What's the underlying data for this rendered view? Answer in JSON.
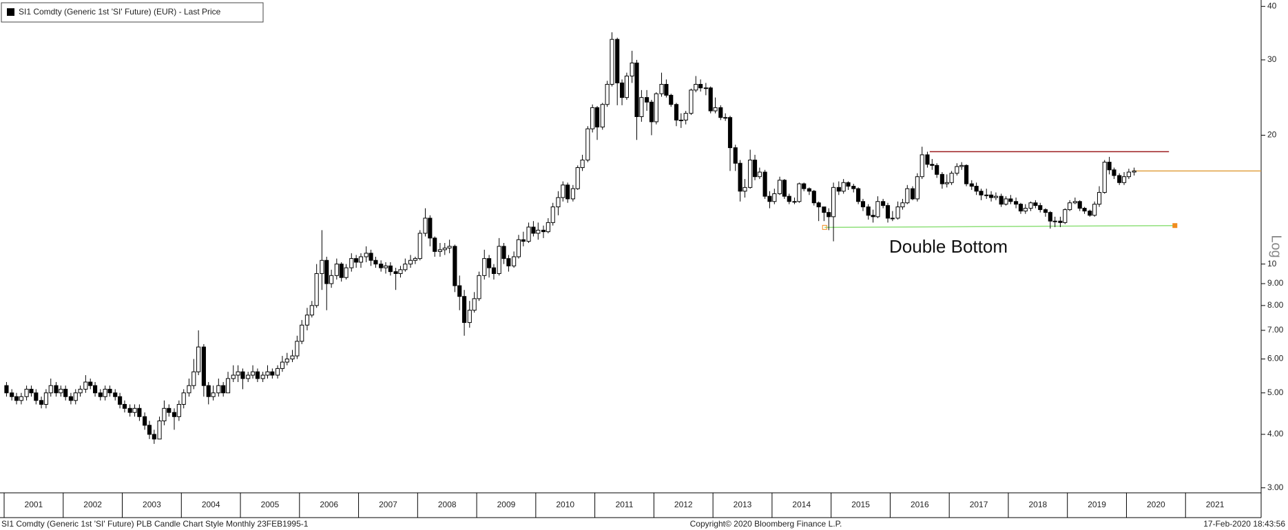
{
  "chart_data": {
    "type": "candlestick",
    "title": "SI1 Comdty (Generic 1st 'SI' Future) (EUR) - Last Price",
    "y_axis_label": "Log",
    "log_scale": true,
    "color_up": "#ffffff",
    "color_down": "#000000",
    "xlim": [
      2000.93,
      2022.28
    ],
    "ylim": [
      2.92,
      41.4
    ],
    "yticks": [
      {
        "value": 3,
        "label": "3.00"
      },
      {
        "value": 4,
        "label": "4.00"
      },
      {
        "value": 5,
        "label": "5.00"
      },
      {
        "value": 6,
        "label": "6.00"
      },
      {
        "value": 7,
        "label": "7.00"
      },
      {
        "value": 8,
        "label": "8.00"
      },
      {
        "value": 9,
        "label": "9.00"
      },
      10,
      20,
      30,
      40
    ],
    "xticks": [
      2001,
      2002,
      2003,
      2004,
      2005,
      2006,
      2007,
      2008,
      2009,
      2010,
      2011,
      2012,
      2013,
      2014,
      2015,
      2016,
      2017,
      2018,
      2019,
      2020,
      2021
    ],
    "x": [
      2001.04,
      2001.13,
      2001.21,
      2001.29,
      2001.38,
      2001.46,
      2001.54,
      2001.63,
      2001.71,
      2001.79,
      2001.88,
      2001.96,
      2002.04,
      2002.13,
      2002.21,
      2002.29,
      2002.38,
      2002.46,
      2002.54,
      2002.63,
      2002.71,
      2002.79,
      2002.88,
      2002.96,
      2003.04,
      2003.13,
      2003.21,
      2003.29,
      2003.38,
      2003.46,
      2003.54,
      2003.63,
      2003.71,
      2003.79,
      2003.88,
      2003.96,
      2004.04,
      2004.13,
      2004.21,
      2004.29,
      2004.38,
      2004.46,
      2004.54,
      2004.63,
      2004.71,
      2004.79,
      2004.88,
      2004.96,
      2005.04,
      2005.13,
      2005.21,
      2005.29,
      2005.38,
      2005.46,
      2005.54,
      2005.63,
      2005.71,
      2005.79,
      2005.88,
      2005.96,
      2006.04,
      2006.13,
      2006.21,
      2006.29,
      2006.38,
      2006.46,
      2006.54,
      2006.63,
      2006.71,
      2006.79,
      2006.88,
      2006.96,
      2007.04,
      2007.13,
      2007.21,
      2007.29,
      2007.38,
      2007.46,
      2007.54,
      2007.63,
      2007.71,
      2007.79,
      2007.88,
      2007.96,
      2008.04,
      2008.13,
      2008.21,
      2008.29,
      2008.38,
      2008.46,
      2008.54,
      2008.63,
      2008.71,
      2008.79,
      2008.88,
      2008.96,
      2009.04,
      2009.13,
      2009.21,
      2009.29,
      2009.38,
      2009.46,
      2009.54,
      2009.63,
      2009.71,
      2009.79,
      2009.88,
      2009.96,
      2010.04,
      2010.13,
      2010.21,
      2010.29,
      2010.38,
      2010.46,
      2010.54,
      2010.63,
      2010.71,
      2010.79,
      2010.88,
      2010.96,
      2011.04,
      2011.13,
      2011.21,
      2011.29,
      2011.38,
      2011.46,
      2011.54,
      2011.63,
      2011.71,
      2011.79,
      2011.88,
      2011.96,
      2012.04,
      2012.13,
      2012.21,
      2012.29,
      2012.38,
      2012.46,
      2012.54,
      2012.63,
      2012.71,
      2012.79,
      2012.88,
      2012.96,
      2013.04,
      2013.13,
      2013.21,
      2013.29,
      2013.38,
      2013.46,
      2013.54,
      2013.63,
      2013.71,
      2013.79,
      2013.88,
      2013.96,
      2014.04,
      2014.13,
      2014.21,
      2014.29,
      2014.38,
      2014.46,
      2014.54,
      2014.63,
      2014.71,
      2014.79,
      2014.88,
      2014.96,
      2015.04,
      2015.13,
      2015.21,
      2015.29,
      2015.38,
      2015.46,
      2015.54,
      2015.63,
      2015.71,
      2015.79,
      2015.88,
      2015.96,
      2016.04,
      2016.13,
      2016.21,
      2016.29,
      2016.38,
      2016.46,
      2016.54,
      2016.63,
      2016.71,
      2016.79,
      2016.88,
      2016.96,
      2017.04,
      2017.13,
      2017.21,
      2017.29,
      2017.38,
      2017.46,
      2017.54,
      2017.63,
      2017.71,
      2017.79,
      2017.88,
      2017.96,
      2018.04,
      2018.13,
      2018.21,
      2018.29,
      2018.38,
      2018.46,
      2018.54,
      2018.63,
      2018.71,
      2018.79,
      2018.88,
      2018.96,
      2019.04,
      2019.13,
      2019.21,
      2019.29,
      2019.38,
      2019.46,
      2019.54,
      2019.63,
      2019.71,
      2019.79,
      2019.88,
      2019.96,
      2020.04,
      2020.13
    ],
    "open": [
      5.2,
      5.0,
      4.9,
      4.8,
      4.9,
      5.1,
      5.0,
      4.8,
      4.7,
      5.0,
      5.2,
      5.0,
      5.1,
      4.9,
      4.8,
      5.0,
      5.1,
      5.3,
      5.2,
      5.0,
      4.9,
      5.1,
      5.0,
      4.9,
      4.7,
      4.6,
      4.5,
      4.6,
      4.4,
      4.2,
      4.0,
      3.9,
      4.3,
      4.6,
      4.5,
      4.4,
      4.7,
      5.0,
      5.2,
      5.6,
      6.4,
      5.2,
      4.9,
      5.0,
      5.2,
      5.0,
      5.4,
      5.5,
      5.6,
      5.4,
      5.5,
      5.6,
      5.4,
      5.5,
      5.6,
      5.5,
      5.7,
      5.9,
      6.0,
      6.1,
      6.6,
      7.2,
      7.6,
      8.0,
      9.5,
      10.2,
      9.0,
      9.4,
      10.0,
      9.3,
      9.8,
      10.3,
      10.1,
      10.4,
      10.6,
      10.2,
      10.0,
      9.8,
      9.9,
      9.6,
      9.5,
      9.7,
      10.0,
      10.2,
      10.3,
      11.8,
      12.8,
      11.5,
      10.7,
      10.8,
      10.9,
      11.0,
      8.9,
      8.4,
      7.3,
      7.8,
      8.3,
      9.4,
      10.3,
      9.8,
      9.5,
      11.0,
      10.3,
      9.9,
      10.4,
      11.4,
      11.3,
      12.2,
      11.8,
      12.0,
      11.9,
      12.5,
      13.6,
      14.3,
      15.3,
      14.2,
      15.0,
      16.8,
      17.5,
      20.7,
      23.2,
      20.9,
      23.6,
      26.3,
      33.5,
      26.5,
      24.5,
      27.5,
      29.5,
      22.1,
      24.5,
      23.9,
      21.5,
      25.0,
      26.3,
      24.8,
      23.6,
      21.7,
      21.7,
      22.5,
      25.5,
      26.3,
      25.8,
      25.8,
      22.8,
      23.2,
      22.0,
      22.0,
      18.7,
      17.2,
      14.8,
      15.1,
      17.5,
      16.0,
      16.4,
      14.4,
      14.0,
      14.6,
      15.7,
      14.4,
      14.0,
      14.0,
      15.4,
      15.0,
      14.8,
      13.9,
      13.6,
      13.2,
      12.9,
      15.1,
      14.8,
      15.5,
      15.2,
      15.0,
      14.0,
      13.6,
      13.0,
      12.9,
      14.0,
      13.7,
      12.8,
      12.8,
      13.6,
      13.9,
      15.0,
      14.2,
      16.0,
      18.0,
      17.1,
      17.0,
      16.2,
      15.4,
      15.5,
      16.3,
      16.9,
      17.0,
      15.4,
      15.2,
      14.8,
      14.5,
      14.5,
      14.3,
      14.4,
      13.8,
      14.2,
      14.0,
      13.8,
      13.3,
      13.5,
      13.9,
      13.7,
      13.4,
      13.2,
      12.6,
      12.6,
      12.5,
      13.4,
      13.9,
      14.0,
      13.5,
      13.3,
      13.0,
      13.8,
      14.7,
      17.3,
      16.6,
      16.1,
      15.5,
      16.0,
      16.4
    ],
    "high": [
      5.3,
      5.1,
      5.0,
      5.0,
      5.2,
      5.2,
      5.1,
      4.9,
      5.1,
      5.4,
      5.3,
      5.2,
      5.2,
      5.0,
      5.1,
      5.2,
      5.5,
      5.4,
      5.3,
      5.1,
      5.2,
      5.2,
      5.1,
      5.0,
      4.8,
      4.7,
      4.7,
      4.7,
      4.5,
      4.3,
      4.1,
      4.4,
      4.8,
      4.7,
      4.6,
      4.8,
      5.1,
      5.4,
      6.0,
      7.0,
      6.5,
      5.3,
      5.2,
      5.4,
      5.3,
      5.6,
      5.8,
      5.8,
      5.7,
      5.6,
      5.8,
      5.7,
      5.6,
      5.8,
      5.7,
      5.8,
      6.1,
      6.2,
      6.3,
      6.8,
      7.4,
      7.9,
      8.2,
      10.0,
      12.0,
      10.4,
      9.7,
      10.3,
      10.1,
      10.0,
      10.6,
      10.5,
      10.6,
      11.0,
      10.8,
      10.4,
      10.2,
      10.1,
      10.1,
      9.8,
      9.9,
      10.3,
      10.5,
      10.4,
      12.0,
      13.5,
      13.0,
      11.6,
      11.2,
      11.2,
      11.4,
      11.1,
      9.4,
      8.7,
      8.2,
      8.6,
      9.6,
      10.8,
      10.5,
      10.0,
      11.5,
      11.2,
      10.5,
      10.7,
      11.7,
      11.9,
      12.5,
      12.6,
      12.5,
      12.3,
      12.8,
      13.9,
      14.8,
      15.6,
      15.5,
      15.3,
      17.0,
      18.0,
      21.0,
      23.6,
      23.4,
      23.8,
      26.8,
      34.8,
      33.8,
      27.0,
      28.0,
      31.5,
      30.0,
      25.5,
      25.5,
      24.2,
      25.2,
      28.0,
      27.0,
      25.0,
      23.8,
      22.5,
      22.8,
      25.7,
      27.5,
      27.0,
      26.5,
      26.0,
      24.5,
      23.5,
      22.5,
      22.2,
      19.0,
      17.5,
      15.8,
      18.5,
      18.0,
      16.8,
      16.6,
      14.8,
      15.0,
      16.0,
      15.8,
      14.6,
      14.3,
      15.5,
      15.5,
      15.1,
      14.9,
      14.0,
      13.6,
      13.5,
      15.5,
      15.6,
      15.8,
      15.6,
      15.4,
      15.1,
      14.2,
      13.8,
      13.4,
      14.4,
      14.2,
      13.9,
      13.3,
      14.0,
      14.2,
      15.3,
      15.2,
      16.3,
      18.8,
      18.3,
      17.6,
      17.2,
      16.4,
      16.2,
      16.5,
      17.2,
      17.3,
      17.1,
      15.7,
      15.5,
      15.0,
      15.0,
      14.8,
      14.7,
      14.6,
      14.4,
      14.5,
      14.3,
      13.9,
      13.8,
      14.0,
      14.1,
      13.9,
      13.5,
      13.3,
      12.9,
      12.9,
      13.5,
      14.1,
      14.3,
      14.1,
      13.6,
      13.4,
      14.0,
      15.2,
      17.5,
      17.8,
      16.8,
      16.3,
      16.4,
      16.7,
      16.8
    ],
    "low": [
      4.9,
      4.8,
      4.7,
      4.7,
      4.8,
      4.9,
      4.7,
      4.6,
      4.6,
      4.9,
      4.9,
      4.9,
      4.8,
      4.7,
      4.7,
      4.9,
      5.0,
      5.1,
      4.9,
      4.8,
      4.8,
      4.9,
      4.8,
      4.6,
      4.5,
      4.4,
      4.4,
      4.3,
      4.1,
      3.9,
      3.8,
      3.9,
      4.2,
      4.4,
      4.1,
      4.3,
      4.6,
      4.9,
      5.1,
      5.5,
      4.9,
      4.7,
      4.8,
      4.9,
      4.9,
      5.0,
      5.3,
      5.3,
      5.1,
      5.3,
      5.4,
      5.3,
      5.3,
      5.4,
      5.4,
      5.4,
      5.6,
      5.8,
      5.9,
      6.0,
      6.5,
      7.0,
      7.5,
      7.9,
      8.7,
      7.8,
      8.8,
      9.2,
      9.1,
      9.2,
      9.6,
      9.8,
      9.8,
      10.1,
      9.9,
      9.8,
      9.6,
      9.5,
      9.4,
      8.7,
      9.3,
      9.6,
      9.8,
      10.0,
      10.2,
      11.6,
      11.0,
      10.4,
      10.4,
      10.5,
      10.6,
      8.6,
      7.8,
      6.8,
      7.1,
      7.7,
      8.2,
      9.2,
      9.3,
      9.2,
      9.4,
      10.0,
      9.6,
      9.8,
      10.3,
      11.0,
      11.2,
      11.6,
      11.4,
      11.5,
      11.8,
      12.3,
      13.0,
      14.0,
      13.9,
      14.0,
      14.9,
      16.5,
      17.3,
      20.3,
      19.5,
      20.6,
      23.3,
      26.0,
      23.5,
      23.5,
      24.2,
      26.5,
      19.5,
      21.5,
      22.8,
      20.0,
      21.2,
      24.6,
      24.5,
      23.3,
      21.0,
      20.8,
      21.2,
      22.3,
      25.2,
      25.3,
      24.8,
      22.5,
      22.5,
      21.7,
      21.6,
      16.5,
      16.5,
      14.0,
      14.3,
      15.0,
      15.7,
      15.8,
      14.2,
      13.5,
      13.8,
      14.5,
      14.2,
      13.8,
      13.8,
      13.9,
      14.8,
      14.5,
      13.7,
      12.6,
      12.6,
      12.0,
      11.3,
      14.5,
      14.6,
      14.9,
      14.7,
      13.8,
      13.3,
      12.7,
      12.5,
      12.8,
      13.5,
      12.5,
      12.6,
      12.7,
      13.4,
      13.8,
      14.1,
      14.0,
      15.8,
      16.8,
      16.6,
      15.9,
      15.0,
      15.1,
      15.3,
      16.1,
      16.6,
      15.2,
      14.9,
      14.5,
      14.1,
      14.2,
      14.0,
      14.1,
      13.6,
      13.7,
      13.8,
      13.5,
      13.1,
      13.1,
      13.3,
      13.5,
      13.2,
      12.9,
      12.1,
      12.2,
      12.2,
      12.4,
      13.3,
      13.8,
      13.3,
      13.1,
      12.9,
      12.9,
      13.6,
      14.6,
      16.2,
      15.8,
      15.3,
      15.3,
      15.8,
      16.1
    ],
    "close": [
      5.0,
      4.9,
      4.8,
      4.9,
      5.1,
      5.0,
      4.8,
      4.7,
      5.0,
      5.2,
      5.0,
      5.1,
      4.9,
      4.8,
      5.0,
      5.1,
      5.3,
      5.2,
      5.0,
      4.9,
      5.1,
      5.0,
      4.9,
      4.7,
      4.6,
      4.5,
      4.6,
      4.4,
      4.2,
      4.0,
      3.9,
      4.3,
      4.6,
      4.5,
      4.4,
      4.7,
      5.0,
      5.2,
      5.6,
      6.4,
      5.2,
      4.9,
      5.0,
      5.2,
      5.0,
      5.4,
      5.5,
      5.6,
      5.4,
      5.5,
      5.6,
      5.4,
      5.5,
      5.6,
      5.5,
      5.7,
      5.9,
      6.0,
      6.1,
      6.6,
      7.2,
      7.6,
      8.0,
      9.5,
      10.2,
      9.0,
      9.4,
      10.0,
      9.3,
      9.8,
      10.3,
      10.1,
      10.4,
      10.6,
      10.2,
      10.0,
      9.8,
      9.9,
      9.6,
      9.5,
      9.7,
      10.0,
      10.2,
      10.3,
      11.8,
      12.8,
      11.5,
      10.7,
      10.8,
      10.9,
      11.0,
      8.9,
      8.4,
      7.3,
      7.8,
      8.3,
      9.4,
      10.3,
      9.8,
      9.5,
      11.0,
      10.3,
      9.9,
      10.4,
      11.4,
      11.3,
      12.2,
      11.8,
      12.0,
      11.9,
      12.5,
      13.6,
      14.3,
      15.3,
      14.2,
      15.0,
      16.8,
      17.5,
      20.7,
      23.2,
      20.9,
      23.6,
      26.3,
      33.5,
      26.5,
      24.5,
      27.5,
      29.5,
      22.1,
      24.5,
      23.9,
      21.5,
      25.0,
      26.3,
      24.8,
      23.6,
      21.7,
      21.7,
      22.5,
      25.5,
      26.3,
      25.8,
      25.8,
      22.8,
      23.2,
      22.0,
      22.0,
      18.7,
      17.2,
      14.8,
      15.1,
      17.5,
      16.0,
      16.4,
      14.4,
      14.0,
      14.6,
      15.7,
      14.4,
      14.0,
      14.0,
      15.4,
      15.0,
      14.8,
      13.9,
      13.6,
      13.2,
      12.9,
      15.1,
      14.8,
      15.5,
      15.2,
      15.0,
      14.0,
      13.6,
      13.0,
      12.9,
      14.0,
      13.7,
      12.8,
      12.8,
      13.6,
      13.9,
      15.0,
      14.2,
      16.0,
      18.0,
      17.1,
      17.0,
      16.2,
      15.4,
      15.5,
      16.3,
      16.9,
      17.0,
      15.4,
      15.2,
      14.8,
      14.5,
      14.5,
      14.3,
      14.4,
      13.8,
      14.2,
      14.0,
      13.8,
      13.3,
      13.5,
      13.9,
      13.7,
      13.4,
      13.2,
      12.6,
      12.6,
      12.5,
      13.4,
      13.9,
      14.0,
      13.5,
      13.3,
      13.0,
      13.8,
      14.7,
      17.3,
      16.6,
      16.1,
      15.5,
      16.0,
      16.4,
      16.5
    ],
    "lines": [
      {
        "x": [
          2016.67,
          2020.72
        ],
        "y": [
          18.3,
          18.3
        ],
        "color": "#9b1b1e"
      },
      {
        "x": [
          2020.1,
          2022.28
        ],
        "y": [
          16.5,
          16.5
        ],
        "color": "#e0a040"
      },
      {
        "x": [
          2014.89,
          2020.82
        ],
        "y": [
          12.18,
          12.3
        ],
        "color": "#8fe07a",
        "marker_color": "#f08c1e"
      }
    ],
    "annotation": "Double Bottom",
    "footer": {
      "left": "SI1 Comdty (Generic 1st 'SI' Future) PLB Candle Chart Style  Monthly 23FEB1995-1",
      "center": "Copyright© 2020 Bloomberg Finance L.P.",
      "right": "17-Feb-2020 18:43:56"
    }
  }
}
